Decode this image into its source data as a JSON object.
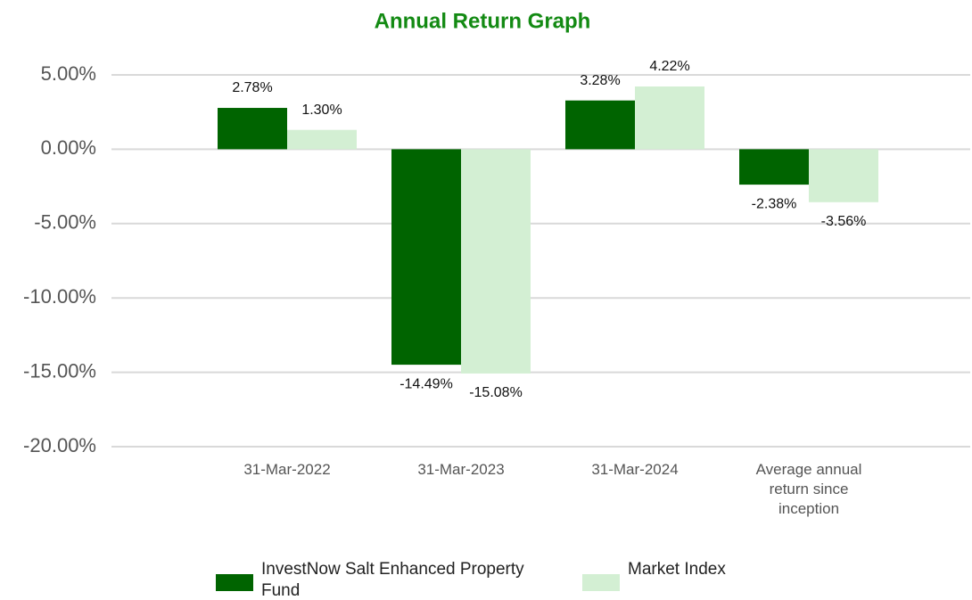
{
  "chart_data": {
    "type": "bar",
    "title": "Annual Return Graph",
    "categories": [
      "31-Mar-2022",
      "31-Mar-2023",
      "31-Mar-2024",
      "Average annual return since inception"
    ],
    "series": [
      {
        "name": "InvestNow Salt Enhanced Property Fund",
        "color": "#006400",
        "values": [
          2.78,
          -14.49,
          3.28,
          -2.38
        ],
        "value_labels": [
          "2.78%",
          "-14.49%",
          "3.28%",
          "-2.38%"
        ]
      },
      {
        "name": "Market Index",
        "color": "#d3efd3",
        "values": [
          1.3,
          -15.08,
          4.22,
          -3.56
        ],
        "value_labels": [
          "1.30%",
          "-15.08%",
          "4.22%",
          "-3.56%"
        ]
      }
    ],
    "ylim": [
      -20,
      5
    ],
    "yticks": [
      {
        "value": 5,
        "label": "5.00%"
      },
      {
        "value": 0,
        "label": "0.00%"
      },
      {
        "value": -5,
        "label": "-5.00%"
      },
      {
        "value": -10,
        "label": "-10.00%"
      },
      {
        "value": -15,
        "label": "-15.00%"
      },
      {
        "value": -20,
        "label": "-20.00%"
      }
    ],
    "grid": true,
    "legend": "bottom"
  }
}
